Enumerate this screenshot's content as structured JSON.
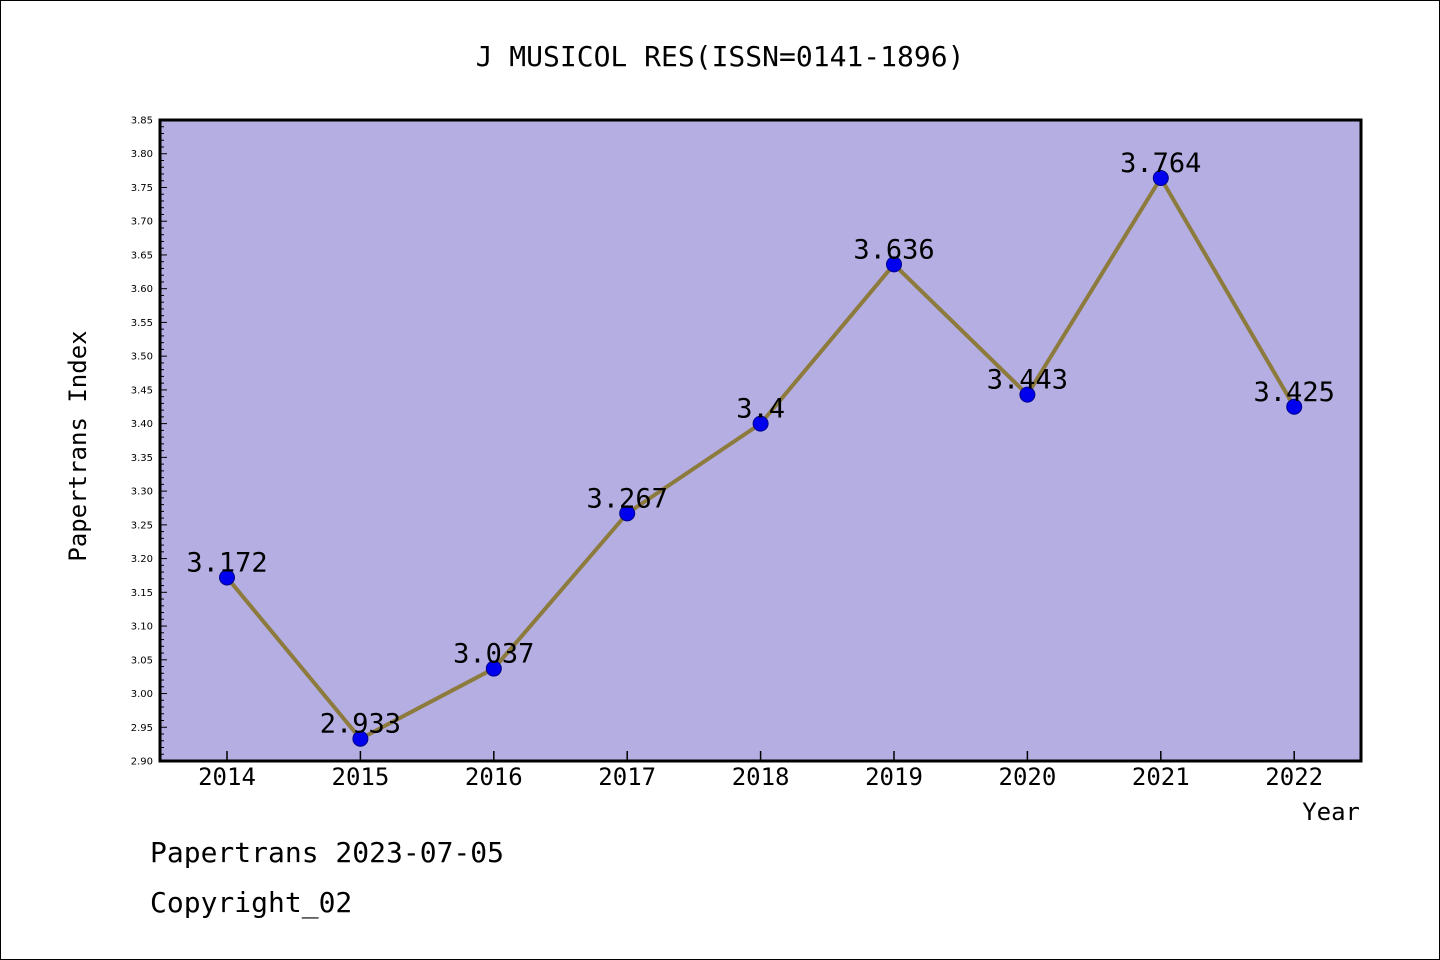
{
  "chart_data": {
    "type": "line",
    "title": "J MUSICOL RES(ISSN=0141-1896)",
    "xlabel": "Year",
    "ylabel": "Papertrans Index",
    "categories": [
      "2014",
      "2015",
      "2016",
      "2017",
      "2018",
      "2019",
      "2020",
      "2021",
      "2022"
    ],
    "series": [
      {
        "values": [
          3.172,
          2.933,
          3.037,
          3.267,
          3.4,
          3.636,
          3.443,
          3.764,
          3.425
        ],
        "labels": [
          "3.172",
          "2.933",
          "3.037",
          "3.267",
          "3.4",
          "3.636",
          "3.443",
          "3.764",
          "3.425"
        ]
      }
    ],
    "ylim": [
      2.9,
      3.85
    ],
    "yticks": [
      "2.90",
      "2.95",
      "3.00",
      "3.05",
      "3.10",
      "3.15",
      "3.20",
      "3.25",
      "3.30",
      "3.35",
      "3.40",
      "3.45",
      "3.50",
      "3.55",
      "3.60",
      "3.65",
      "3.70",
      "3.75",
      "3.80",
      "3.85"
    ],
    "grid": false,
    "legend": "none",
    "colors": {
      "plot_background": "#b5aee2",
      "line": "#8c7b3c",
      "marker": "#0000ee"
    }
  },
  "footer": {
    "date": "Papertrans 2023-07-05",
    "copyright": "Copyright_02"
  }
}
